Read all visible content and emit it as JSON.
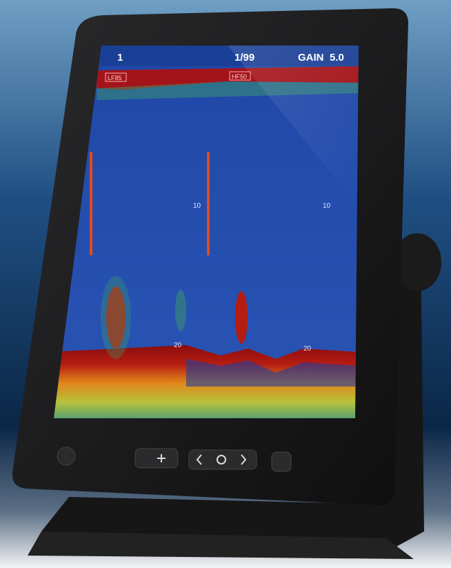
{
  "status_bar": {
    "channel": "1",
    "page": "1/99",
    "gain_label": "GAIN",
    "gain_value": "5.0"
  },
  "frequency_labels": [
    "LF85",
    "HF50"
  ],
  "depth_scale": {
    "left": [
      "10",
      "20"
    ],
    "right": [
      "10",
      "20"
    ]
  }
}
